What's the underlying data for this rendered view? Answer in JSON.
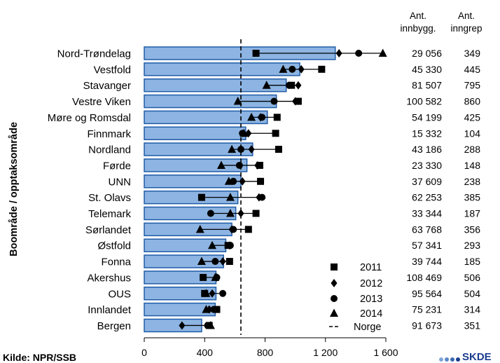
{
  "chart_data": {
    "type": "bar",
    "ylabel": "Boområde / opptaksområde",
    "header": {
      "col1": [
        "Ant.",
        "innbygg."
      ],
      "col2": [
        "Ant.",
        "inngrep"
      ]
    },
    "categories": [
      "Nord-Trøndelag",
      "Vestfold",
      "Stavanger",
      "Vestre Viken",
      "Møre og Romsdal",
      "Finnmark",
      "Nordland",
      "Førde",
      "UNN",
      "St. Olavs",
      "Telemark",
      "Sørlandet",
      "Østfold",
      "Fonna",
      "Akershus",
      "OUS",
      "Innlandet",
      "Bergen"
    ],
    "innbyggere": [
      "29 056",
      "45 330",
      "81 507",
      "100 582",
      "54 199",
      "15 332",
      "43 186",
      "23 330",
      "37 609",
      "62 253",
      "33 344",
      "63 768",
      "57 341",
      "39 744",
      "108 469",
      "95 564",
      "75 231",
      "91 673"
    ],
    "inngrep": [
      "349",
      "445",
      "795",
      "860",
      "425",
      "104",
      "288",
      "148",
      "238",
      "385",
      "187",
      "356",
      "293",
      "185",
      "506",
      "504",
      "314",
      "351"
    ],
    "bar_values": [
      1265,
      1030,
      940,
      875,
      815,
      672,
      718,
      680,
      640,
      620,
      606,
      580,
      540,
      525,
      475,
      475,
      470,
      380
    ],
    "series": [
      {
        "name": "2011",
        "marker": "square",
        "values": [
          740,
          1175,
          975,
          1020,
          880,
          870,
          890,
          765,
          770,
          380,
          740,
          690,
          555,
          565,
          390,
          400,
          480,
          430
        ]
      },
      {
        "name": "2012",
        "marker": "diamond",
        "values": [
          1290,
          1040,
          1020,
          1000,
          770,
          690,
          710,
          750,
          650,
          760,
          640,
          580,
          565,
          520,
          480,
          450,
          430,
          250
        ]
      },
      {
        "name": "2013",
        "marker": "circle",
        "values": [
          1420,
          980,
          960,
          860,
          780,
          650,
          640,
          630,
          590,
          780,
          440,
          590,
          570,
          470,
          480,
          520,
          460,
          420
        ]
      },
      {
        "name": "2014",
        "marker": "triangle",
        "values": [
          1580,
          920,
          810,
          620,
          710,
          660,
          580,
          510,
          560,
          570,
          570,
          370,
          450,
          380,
          470,
          410,
          410,
          440
        ]
      }
    ],
    "reference_line": {
      "name": "Norge",
      "value": 640
    },
    "xlim": [
      0,
      1600
    ],
    "xticks": [
      "0",
      "400",
      "800",
      "1 200",
      "1 600"
    ],
    "xtick_values": [
      0,
      400,
      800,
      1200,
      1600
    ],
    "colors": {
      "bar_fill": "#8db4e2",
      "bar_edge": "#1f5ca8",
      "marker": "#000000"
    }
  },
  "source_text": "Kilde: NPR/SSB",
  "logo_text": "SKDE"
}
